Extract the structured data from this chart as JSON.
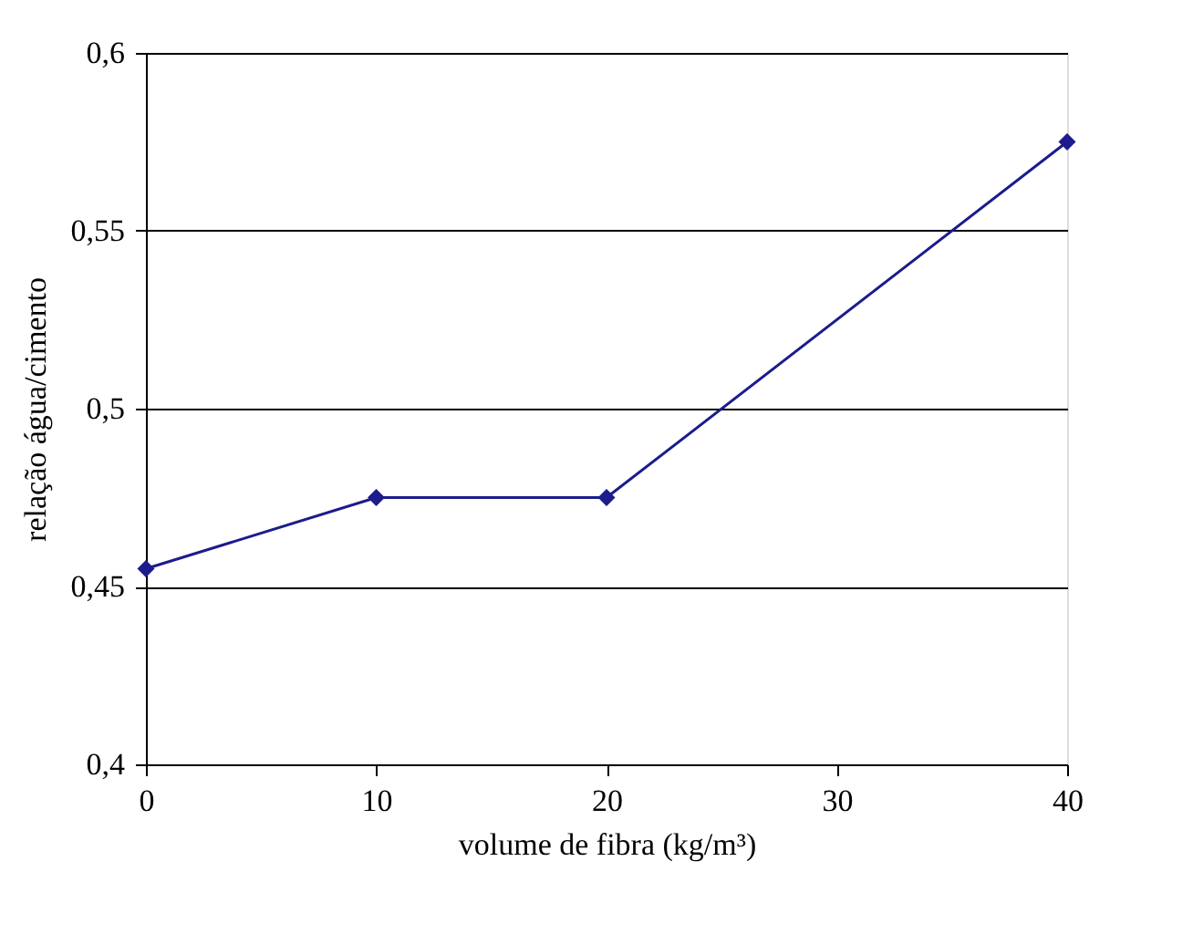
{
  "chart_data": {
    "type": "line",
    "xlabel": "volume de fibra (kg/m³)",
    "ylabel": "relação água/cimento",
    "x": [
      0,
      10,
      20,
      40
    ],
    "series": [
      {
        "color": "#1c1c8c",
        "values": [
          0.455,
          0.475,
          0.475,
          0.575
        ]
      }
    ],
    "xlim": [
      0,
      40
    ],
    "xticks": [
      0,
      10,
      20,
      30,
      40
    ],
    "ylim": [
      0.4,
      0.6
    ],
    "yticks": [
      {
        "value": 0.4,
        "label": "0,4"
      },
      {
        "value": 0.45,
        "label": "0,45"
      },
      {
        "value": 0.5,
        "label": "0,5"
      },
      {
        "value": 0.55,
        "label": "0,55"
      },
      {
        "value": 0.6,
        "label": "0,6"
      }
    ],
    "grid": "y",
    "marker": "diamond",
    "line_style": "solid"
  }
}
